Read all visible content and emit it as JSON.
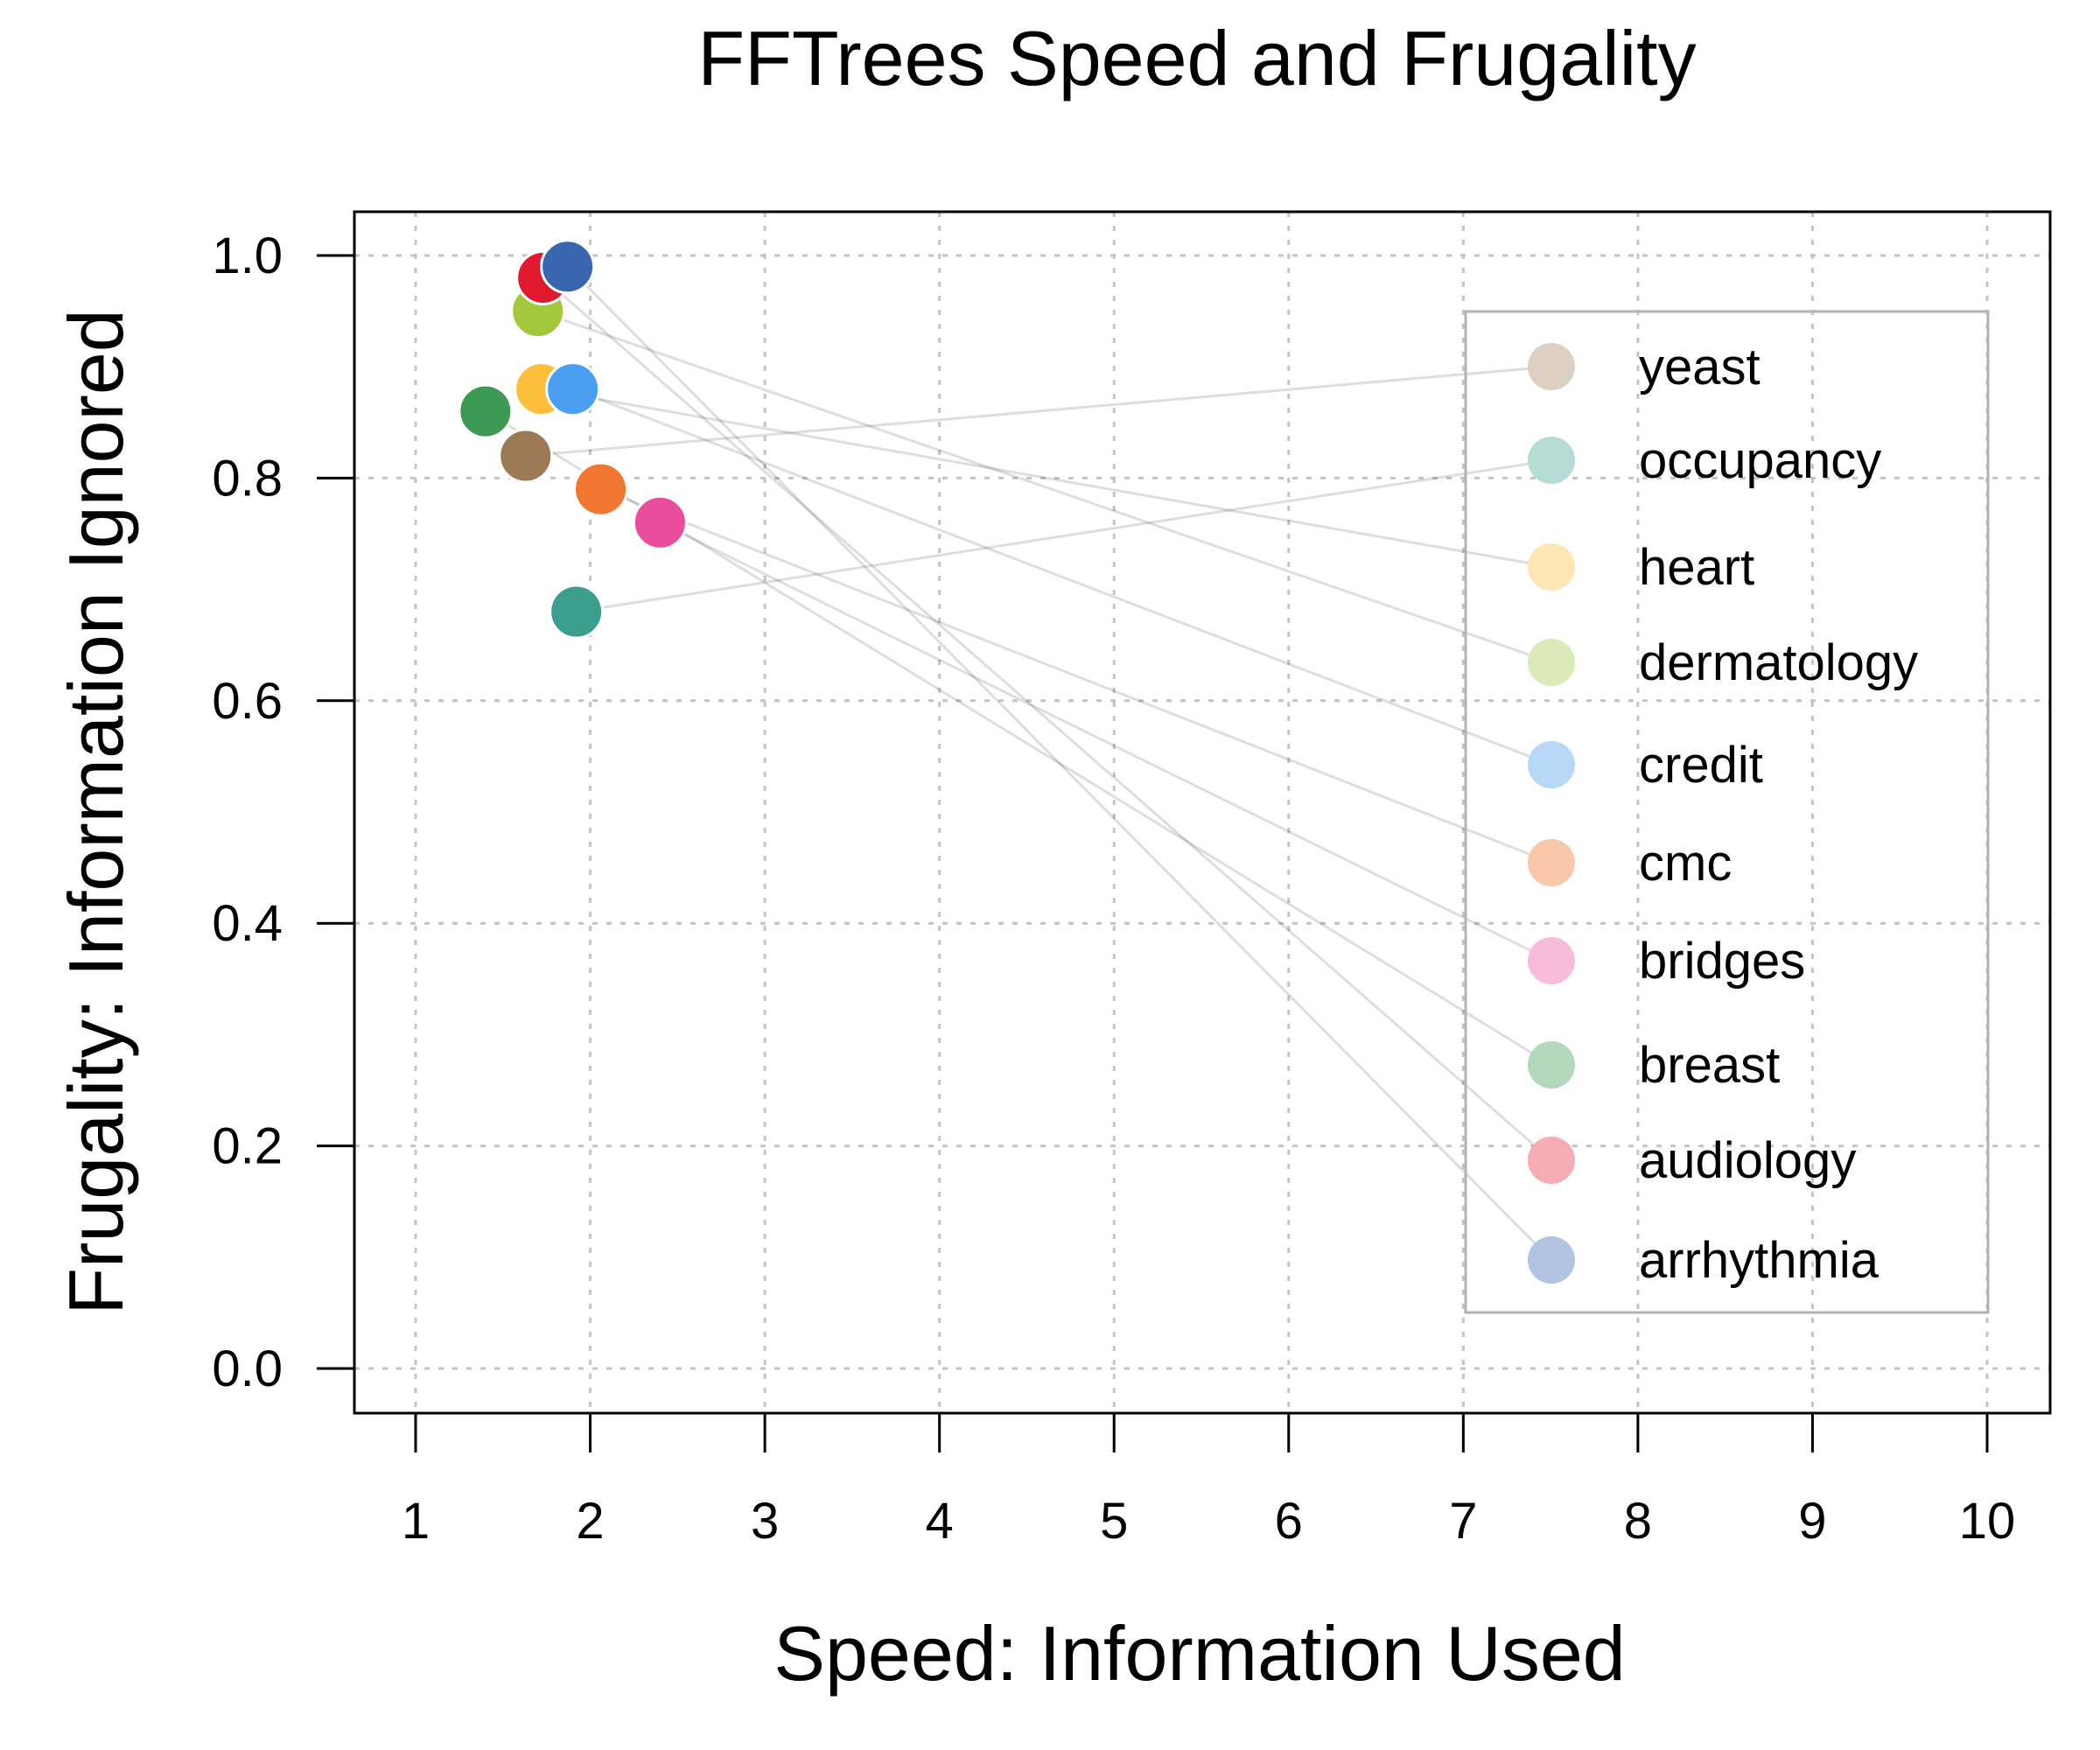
{
  "chart_data": {
    "type": "scatter",
    "title": "FFTrees Speed and Frugality",
    "xlabel": "Speed: Information Used",
    "ylabel": "Frugality: Information Ignored",
    "xlim": [
      1,
      10
    ],
    "ylim": [
      0,
      1
    ],
    "xticks": [
      1,
      2,
      3,
      4,
      5,
      6,
      7,
      8,
      9,
      10
    ],
    "yticks": [
      0.0,
      0.2,
      0.4,
      0.6,
      0.8,
      1.0
    ],
    "ytick_labels": [
      "0.0",
      "0.2",
      "0.4",
      "0.6",
      "0.8",
      "1.0"
    ],
    "grid": true,
    "legend_position": "right",
    "connector_lines": true,
    "series": [
      {
        "name": "yeast",
        "x": 1.63,
        "y": 0.82,
        "color": "#9c7a56",
        "legend_color": "#ddd0c2"
      },
      {
        "name": "occupancy",
        "x": 1.92,
        "y": 0.68,
        "color": "#3c9e8d",
        "legend_color": "#b5ddd5"
      },
      {
        "name": "heart",
        "x": 1.72,
        "y": 0.88,
        "color": "#fdbf3b",
        "legend_color": "#fee6b4"
      },
      {
        "name": "dermatology",
        "x": 1.7,
        "y": 0.95,
        "color": "#a4c83d",
        "legend_color": "#dceab9"
      },
      {
        "name": "credit",
        "x": 1.9,
        "y": 0.88,
        "color": "#4a9ff0",
        "legend_color": "#b8d8f8"
      },
      {
        "name": "cmc",
        "x": 2.06,
        "y": 0.79,
        "color": "#f17731",
        "legend_color": "#f9c8ab"
      },
      {
        "name": "bridges",
        "x": 2.4,
        "y": 0.76,
        "color": "#ea4d9b",
        "legend_color": "#f7bcda"
      },
      {
        "name": "breast",
        "x": 1.4,
        "y": 0.86,
        "color": "#3d9a52",
        "legend_color": "#b4d8bb"
      },
      {
        "name": "audiology",
        "x": 1.73,
        "y": 0.98,
        "color": "#e0192e",
        "legend_color": "#f5adb3"
      },
      {
        "name": "arrhythmia",
        "x": 1.87,
        "y": 0.99,
        "color": "#3a66b0",
        "legend_color": "#b3c4e2"
      }
    ]
  }
}
